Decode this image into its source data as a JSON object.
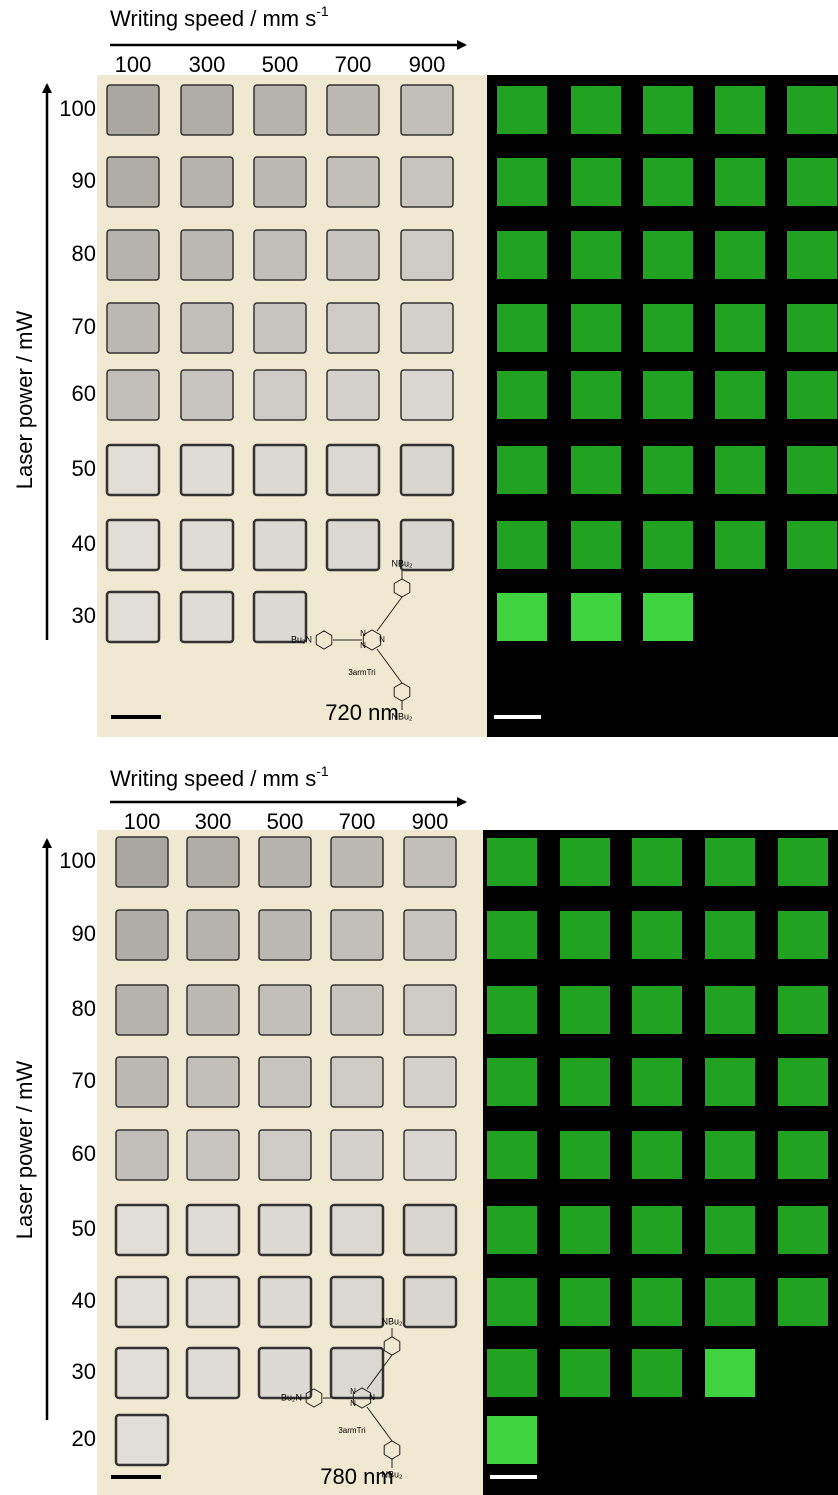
{
  "panels": [
    {
      "x_axis_label": "Writing speed / mm s",
      "x_axis_label_sup": "-1",
      "speeds": [
        "100",
        "300",
        "500",
        "700",
        "900"
      ],
      "y_axis_label": "Laser power / mW",
      "powers": [
        "100",
        "90",
        "80",
        "70",
        "60",
        "50",
        "40",
        "30"
      ],
      "wavelength": "720 nm",
      "structure": {
        "name": "3armTri",
        "substituents": [
          "NBu₂",
          "Bu₂N",
          "NBu₂"
        ],
        "ring_atoms": [
          "N",
          "N",
          "N"
        ]
      }
    },
    {
      "x_axis_label": "Writing speed / mm s",
      "x_axis_label_sup": "-1",
      "speeds": [
        "100",
        "300",
        "500",
        "700",
        "900"
      ],
      "y_axis_label": "Laser power / mW",
      "powers": [
        "100",
        "90",
        "80",
        "70",
        "60",
        "50",
        "40",
        "30",
        "20"
      ],
      "wavelength": "780 nm",
      "structure": {
        "name": "3armTri",
        "substituents": [
          "NBu₂",
          "Bu₂N",
          "NBu₂"
        ],
        "ring_atoms": [
          "N",
          "N",
          "N"
        ]
      }
    }
  ]
}
